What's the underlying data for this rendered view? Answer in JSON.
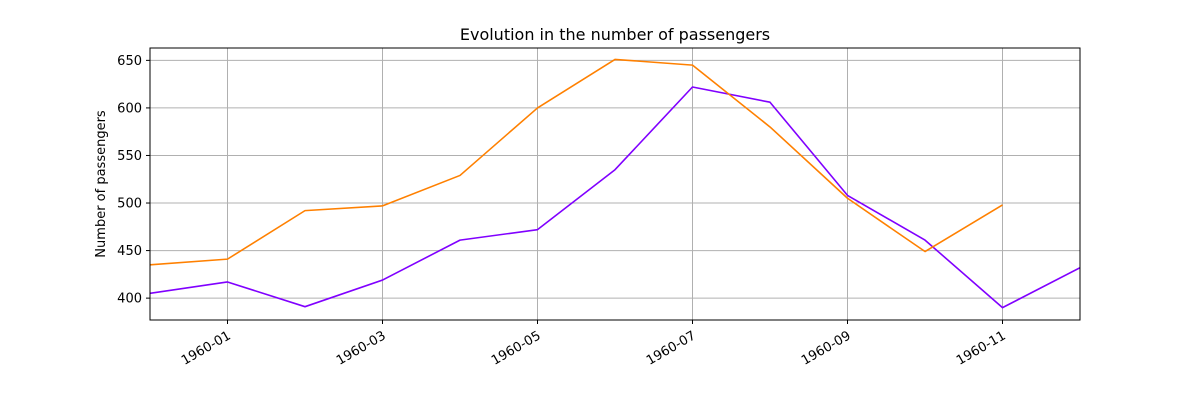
{
  "chart_data": {
    "type": "line",
    "title": "Evolution in the number of passengers",
    "xlabel": "",
    "ylabel": "Number of passengers",
    "x": [
      "1959-12",
      "1960-01",
      "1960-02",
      "1960-03",
      "1960-04",
      "1960-05",
      "1960-06",
      "1960-07",
      "1960-08",
      "1960-09",
      "1960-10",
      "1960-11",
      "1960-12"
    ],
    "xlim": [
      "1959-12",
      "1960-12"
    ],
    "xticks": [
      "1960-01",
      "1960-03",
      "1960-05",
      "1960-07",
      "1960-09",
      "1960-11"
    ],
    "ylim": [
      377,
      663
    ],
    "yticks": [
      400,
      450,
      500,
      550,
      600,
      650
    ],
    "grid": true,
    "series": [
      {
        "color": "#8000ff",
        "values": [
          405,
          417,
          391,
          419,
          461,
          472,
          535,
          622,
          606,
          508,
          461,
          390,
          432
        ]
      },
      {
        "color": "#ff8000",
        "values": [
          435,
          441,
          492,
          497,
          529,
          600,
          651,
          645,
          580,
          505,
          449,
          498,
          null
        ]
      }
    ]
  }
}
